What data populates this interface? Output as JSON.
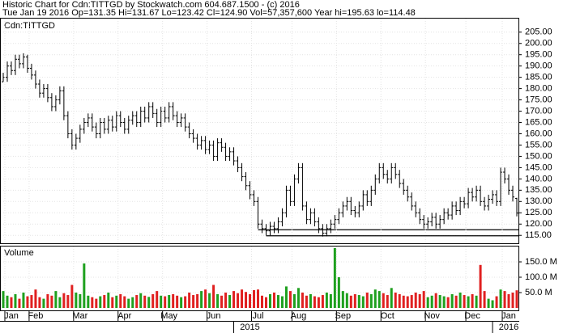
{
  "chart_data": [
    {
      "type": "ohlc",
      "title": "Historic Chart for Cdn:TITTGD by Stockwatch.com 604.687.1500 - (c) 2016",
      "subtitle": "Tue Jan 19 2016  Op=131.35  Hi=131.67  Lo=123.42  Cl=124.90  Vol=57,357,600  Year hi=195.63  lo=114.48",
      "label": "Cdn:TITTGD",
      "color": "#000000",
      "grid": true,
      "xlim": [
        -0.6,
        127.4
      ],
      "ylim": [
        111.5,
        211
      ],
      "yticks": [
        {
          "value": 115,
          "label": "115.00"
        },
        {
          "value": 120,
          "label": "120.00"
        },
        {
          "value": 125,
          "label": "125.00"
        },
        {
          "value": 130,
          "label": "130.00"
        },
        {
          "value": 135,
          "label": "135.00"
        },
        {
          "value": 140,
          "label": "140.00"
        },
        {
          "value": 145,
          "label": "145.00"
        },
        {
          "value": 150,
          "label": "150.00"
        },
        {
          "value": 155,
          "label": "155.00"
        },
        {
          "value": 160,
          "label": "160.00"
        },
        {
          "value": 165,
          "label": "165.00"
        },
        {
          "value": 170,
          "label": "170.00"
        },
        {
          "value": 175,
          "label": "175.00"
        },
        {
          "value": 180,
          "label": "180.00"
        },
        {
          "value": 185,
          "label": "185.00"
        },
        {
          "value": 190,
          "label": "190.00"
        },
        {
          "value": 195,
          "label": "195.00"
        },
        {
          "value": 200,
          "label": "200.00"
        },
        {
          "value": 205,
          "label": "205.00"
        }
      ],
      "hlines": [
        {
          "from": 63,
          "value": 117.5
        },
        {
          "from": 65,
          "value": 114.8
        }
      ],
      "open": [
        183,
        185,
        190,
        188,
        193,
        191,
        194,
        189,
        186,
        182,
        178,
        180,
        176,
        172,
        175,
        179,
        168,
        160,
        155,
        158,
        162,
        165,
        167,
        163,
        160,
        165,
        162,
        166,
        163,
        168,
        165,
        162,
        166,
        168,
        165,
        170,
        167,
        172,
        169,
        165,
        170,
        167,
        172,
        168,
        165,
        167,
        163,
        160,
        158,
        155,
        157,
        153,
        155,
        150,
        156,
        154,
        150,
        152,
        148,
        145,
        141,
        137,
        133,
        130,
        120,
        118,
        117,
        119,
        118,
        121,
        125,
        135,
        130,
        140,
        145,
        128,
        122,
        125,
        121,
        118,
        116,
        118,
        120,
        122,
        125,
        128,
        130,
        126,
        125,
        128,
        133,
        130,
        135,
        140,
        145,
        142,
        140,
        145,
        142,
        138,
        135,
        132,
        128,
        125,
        122,
        120,
        121,
        123,
        120,
        122,
        125,
        124,
        128,
        126,
        130,
        129,
        134,
        132,
        135,
        130,
        128,
        131,
        133,
        130,
        143,
        140,
        135,
        131.35
      ],
      "high": [
        187,
        192,
        192,
        195,
        195,
        195.63,
        195,
        191,
        188,
        184,
        182,
        182,
        178,
        177,
        181,
        181,
        170,
        162,
        160,
        164,
        167,
        169,
        169,
        165,
        167,
        167,
        168,
        168,
        170,
        170,
        167,
        168,
        170,
        170,
        172,
        172,
        174,
        174,
        171,
        172,
        172,
        174,
        174,
        170,
        169,
        169,
        165,
        162,
        160,
        159,
        159,
        157,
        157,
        158,
        158,
        156,
        154,
        154,
        150,
        147,
        143,
        139,
        135,
        132,
        122,
        120,
        121,
        121,
        123,
        127,
        137,
        137,
        142,
        147,
        147,
        130,
        127,
        127,
        123,
        120,
        120,
        122,
        124,
        127,
        130,
        132,
        132,
        128,
        130,
        135,
        135,
        137,
        142,
        147,
        147,
        144,
        147,
        147,
        144,
        140,
        137,
        134,
        130,
        127,
        124,
        123,
        125,
        125,
        124,
        127,
        127,
        130,
        130,
        132,
        132,
        136,
        136,
        137,
        137,
        132,
        133,
        135,
        135,
        145,
        145,
        142,
        137,
        131.67
      ],
      "low": [
        183,
        183,
        186,
        186,
        189,
        189,
        187,
        184,
        180,
        176,
        176,
        174,
        170,
        170,
        173,
        166,
        158,
        153,
        153,
        156,
        160,
        163,
        161,
        158,
        158,
        160,
        160,
        161,
        161,
        163,
        160,
        160,
        164,
        163,
        163,
        165,
        165,
        167,
        163,
        163,
        165,
        165,
        166,
        163,
        163,
        161,
        158,
        156,
        153,
        153,
        151,
        151,
        148,
        148,
        152,
        148,
        148,
        146,
        143,
        139,
        135,
        131,
        128,
        118,
        116,
        115,
        115,
        116,
        116,
        119,
        123,
        128,
        128,
        138,
        126,
        120,
        120,
        119,
        116,
        114.48,
        114.6,
        116,
        118,
        120,
        123,
        126,
        124,
        123,
        123,
        126,
        128,
        128,
        133,
        138,
        140,
        138,
        138,
        140,
        136,
        133,
        130,
        126,
        123,
        120,
        118,
        118,
        119,
        118,
        118,
        120,
        122,
        122,
        124,
        124,
        127,
        127,
        130,
        130,
        128,
        126,
        126,
        129,
        128,
        128,
        138,
        133,
        130,
        123.42
      ],
      "close": [
        185,
        190,
        188,
        193,
        191,
        194,
        189,
        186,
        182,
        178,
        180,
        176,
        172,
        175,
        179,
        168,
        160,
        155,
        158,
        162,
        165,
        167,
        163,
        160,
        165,
        162,
        166,
        163,
        168,
        165,
        162,
        166,
        168,
        165,
        170,
        167,
        172,
        169,
        165,
        170,
        167,
        172,
        168,
        165,
        167,
        163,
        160,
        158,
        155,
        157,
        153,
        155,
        150,
        156,
        154,
        150,
        152,
        148,
        145,
        141,
        137,
        133,
        130,
        120,
        118,
        117,
        119,
        118,
        121,
        125,
        135,
        130,
        140,
        145,
        128,
        122,
        125,
        121,
        118,
        116,
        118,
        120,
        122,
        125,
        128,
        130,
        126,
        125,
        128,
        133,
        130,
        135,
        140,
        145,
        142,
        140,
        145,
        142,
        138,
        135,
        132,
        128,
        125,
        122,
        120,
        121,
        123,
        120,
        122,
        125,
        124,
        128,
        126,
        130,
        129,
        134,
        132,
        135,
        130,
        128,
        131,
        133,
        130,
        143,
        140,
        135,
        132,
        124.9
      ]
    },
    {
      "type": "bar",
      "title": "Volume",
      "up_color": "#1ea01e",
      "down_color": "#e02020",
      "grid": true,
      "xlim": [
        -0.6,
        127.4
      ],
      "ylim": [
        0,
        200
      ],
      "yticks": [
        {
          "value": 50,
          "label": "50.0 M"
        },
        {
          "value": 100,
          "label": "100.0 M"
        },
        {
          "value": 150,
          "label": "150.0 M"
        }
      ],
      "xticks": [
        {
          "value": 2,
          "label": "Jan"
        },
        {
          "value": 8,
          "label": "Feb"
        },
        {
          "value": 19,
          "label": "Mar"
        },
        {
          "value": 30,
          "label": "Apr"
        },
        {
          "value": 41,
          "label": "May"
        },
        {
          "value": 52,
          "label": "Jun"
        },
        {
          "value": 63,
          "label": "Jul"
        },
        {
          "value": 73,
          "label": "Aug"
        },
        {
          "value": 84,
          "label": "Sep"
        },
        {
          "value": 95,
          "label": "Oct"
        },
        {
          "value": 106,
          "label": "Nov"
        },
        {
          "value": 116,
          "label": "Dec"
        },
        {
          "value": 125,
          "label": "Jan"
        }
      ],
      "year_ticks": [
        {
          "value": 61,
          "label": "2015"
        },
        {
          "value": 125,
          "label": "2016"
        }
      ],
      "values": [
        55,
        40,
        35,
        45,
        30,
        50,
        38,
        42,
        60,
        35,
        30,
        45,
        40,
        55,
        35,
        48,
        42,
        75,
        50,
        45,
        145,
        40,
        35,
        30,
        38,
        42,
        50,
        35,
        40,
        45,
        38,
        30,
        35,
        42,
        48,
        40,
        36,
        45,
        55,
        40,
        38,
        42,
        45,
        40,
        35,
        38,
        50,
        42,
        45,
        55,
        60,
        48,
        75,
        45,
        40,
        50,
        42,
        55,
        48,
        60,
        52,
        45,
        58,
        60,
        40,
        35,
        45,
        50,
        42,
        38,
        70,
        55,
        45,
        65,
        50,
        40,
        45,
        38,
        35,
        42,
        50,
        45,
        195,
        100,
        55,
        48,
        40,
        45,
        42,
        38,
        50,
        45,
        60,
        55,
        48,
        42,
        65,
        50,
        45,
        40,
        38,
        42,
        50,
        45,
        55,
        35,
        40,
        48,
        42,
        38,
        35,
        45,
        40,
        50,
        42,
        38,
        45,
        40,
        140,
        55,
        30,
        25,
        38,
        60,
        55,
        45,
        50,
        57.36
      ]
    }
  ]
}
